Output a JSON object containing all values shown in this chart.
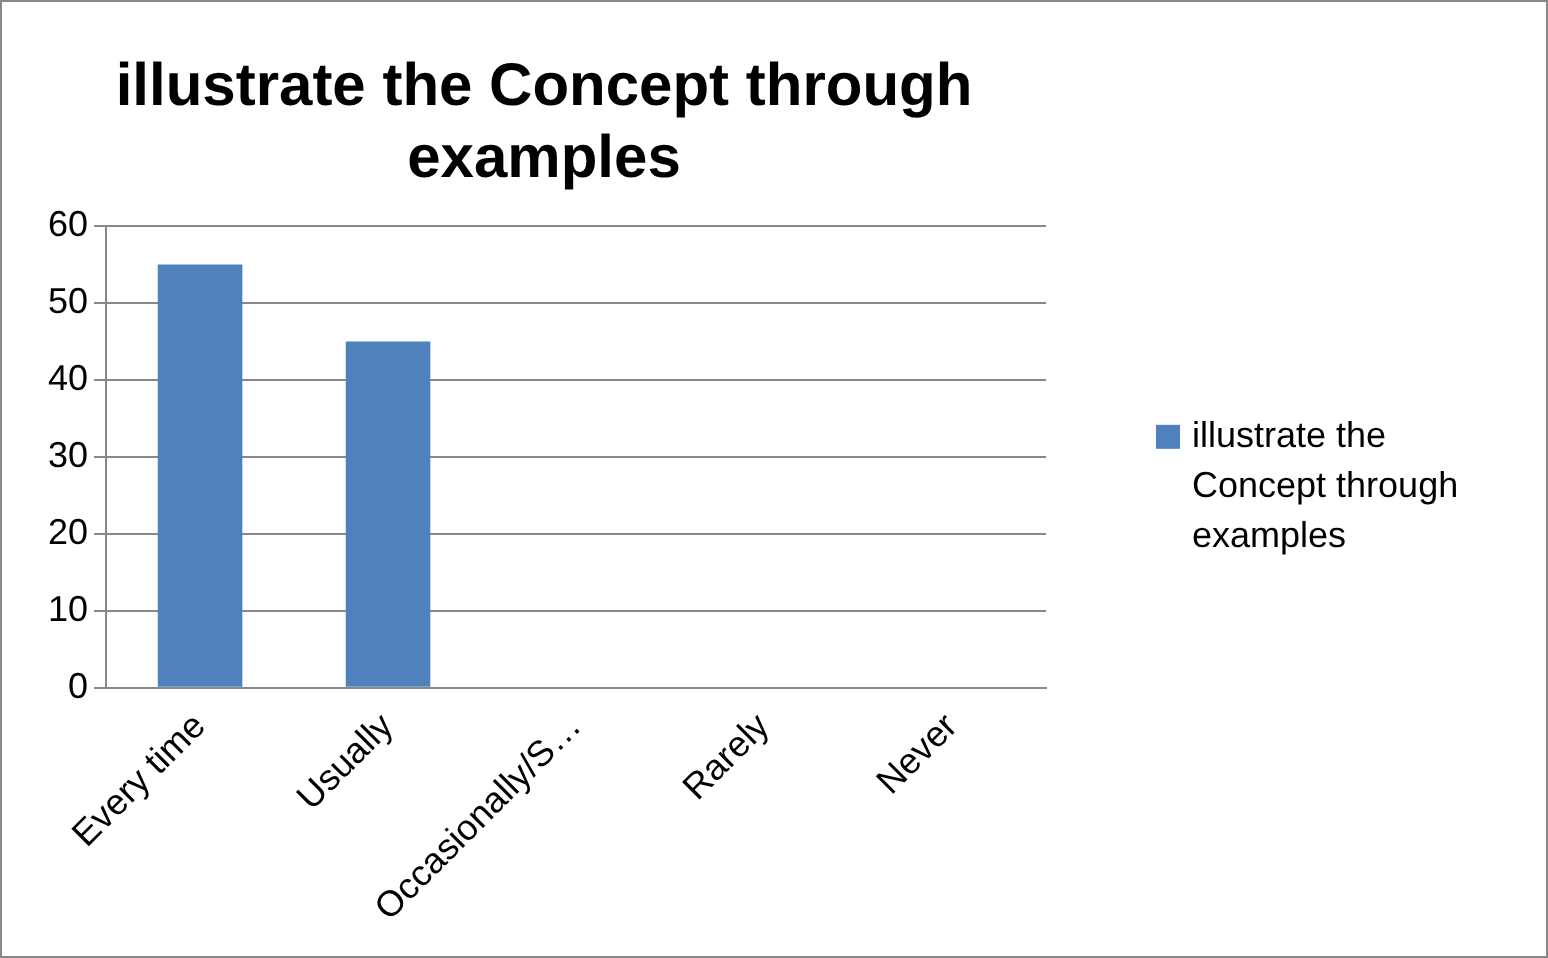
{
  "chart_data": {
    "type": "bar",
    "title": "illustrate the Concept through examples",
    "categories": [
      "Every time",
      "Usually",
      "Occasionally/S…",
      "Rarely",
      "Never"
    ],
    "series": [
      {
        "name": "illustrate the Concept through examples",
        "color": "#4f81bd",
        "values": [
          55,
          45,
          0,
          0,
          0
        ]
      }
    ],
    "ylim": [
      0,
      60
    ],
    "yticks": [
      0,
      10,
      20,
      30,
      40,
      50,
      60
    ],
    "grid": "y",
    "legend": "right"
  }
}
